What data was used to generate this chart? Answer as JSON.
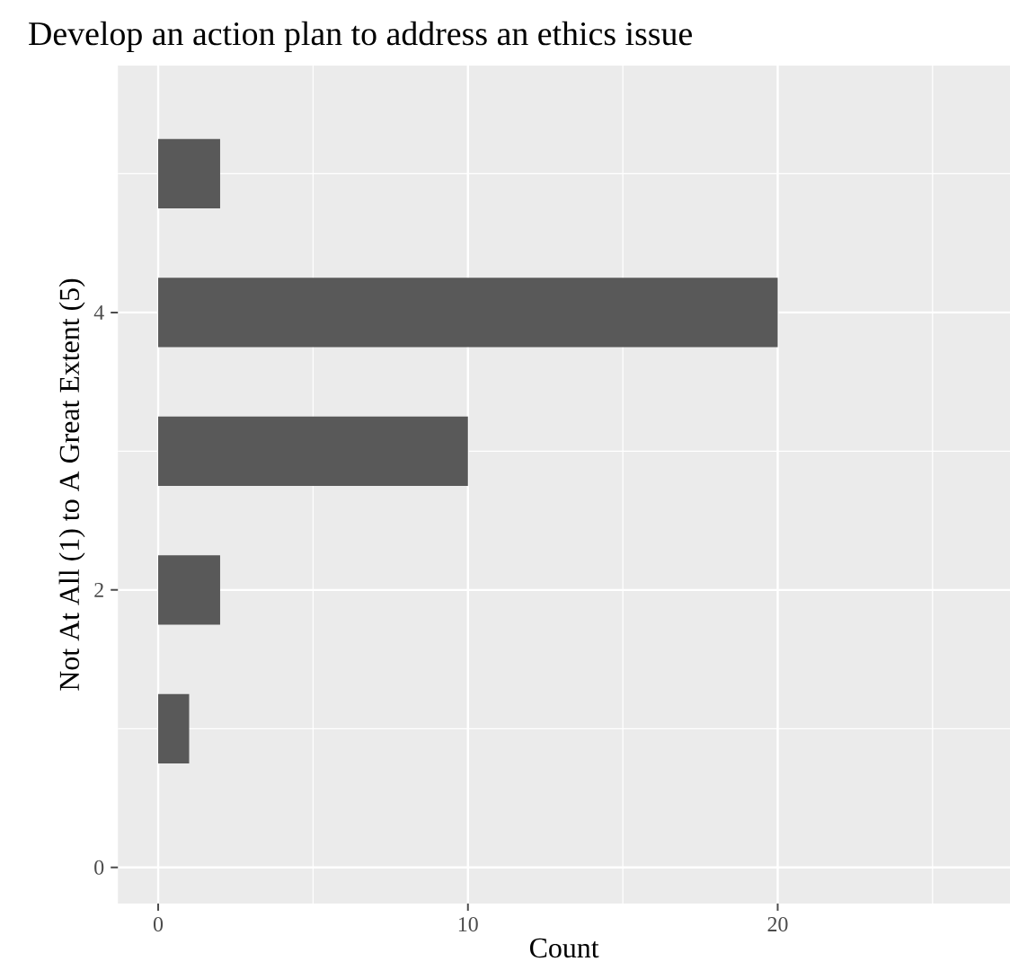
{
  "chart_data": {
    "type": "bar",
    "orientation": "horizontal",
    "title": "Develop an action plan to address an ethics issue",
    "xlabel": "Count",
    "ylabel": "Not At All (1) to A Great Extent (5)",
    "x": [
      1,
      2,
      3,
      4,
      5
    ],
    "values": [
      1,
      2,
      10,
      20,
      2
    ],
    "color": "#595959",
    "xlim": [
      -1.3,
      27.5
    ],
    "xticks": [
      0,
      10,
      20
    ],
    "ylim": [
      -0.26,
      5.78
    ],
    "yticks": [
      0,
      2,
      4
    ],
    "grid": true
  }
}
